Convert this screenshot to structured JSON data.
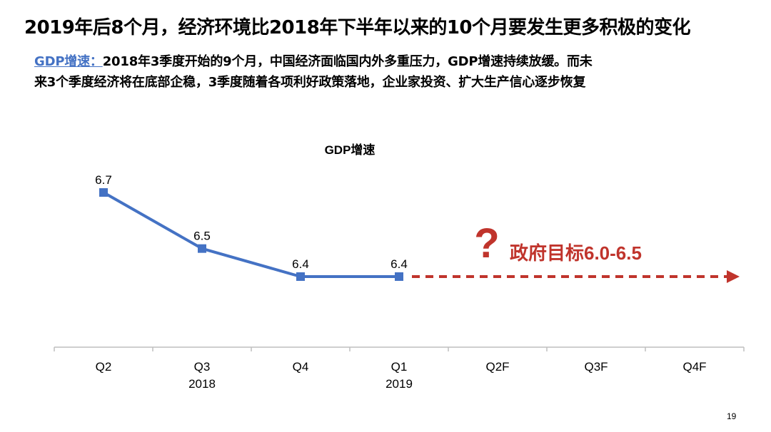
{
  "slide": {
    "title": "2019年后8个月，经济环境比2018年下半年以来的10个月要发生更多积极的变化",
    "summary_label": "GDP增速：",
    "summary_line1": "2018年3季度开始的9个月，中国经济面临国内外多重压力，GDP增速持续放缓。而未",
    "summary_line2": "来3个季度经济将在底部企稳，3季度随着各项利好政策落地，企业家投资、扩大生产信心逐步恢复",
    "page_number": "19"
  },
  "colors": {
    "series": "#4472c4",
    "forecast": "#c0342c",
    "axis": "#bfbfbf",
    "text": "#000000",
    "label_accent": "#4472c4"
  },
  "chart_data": {
    "type": "line",
    "title": "GDP增速",
    "xlabel": "",
    "ylabel": "",
    "grid": false,
    "legend": "none",
    "ylim": [
      6.0,
      6.9
    ],
    "categories": [
      "Q2",
      "Q3",
      "Q4",
      "Q1",
      "Q2F",
      "Q3F",
      "Q4F"
    ],
    "year_labels": [
      "",
      "2018",
      "",
      "2019",
      "",
      "",
      ""
    ],
    "series": [
      {
        "values": [
          6.7,
          6.5,
          6.4,
          6.4,
          null,
          null,
          null
        ],
        "data_labels": [
          "6.7",
          "6.5",
          "6.4",
          "6.4"
        ],
        "color": "#4472c4"
      }
    ],
    "forecast": {
      "style": "dashed-arrow",
      "color": "#c0342c",
      "question_mark": "?",
      "annotation": "政府目标6.0-6.5"
    }
  }
}
